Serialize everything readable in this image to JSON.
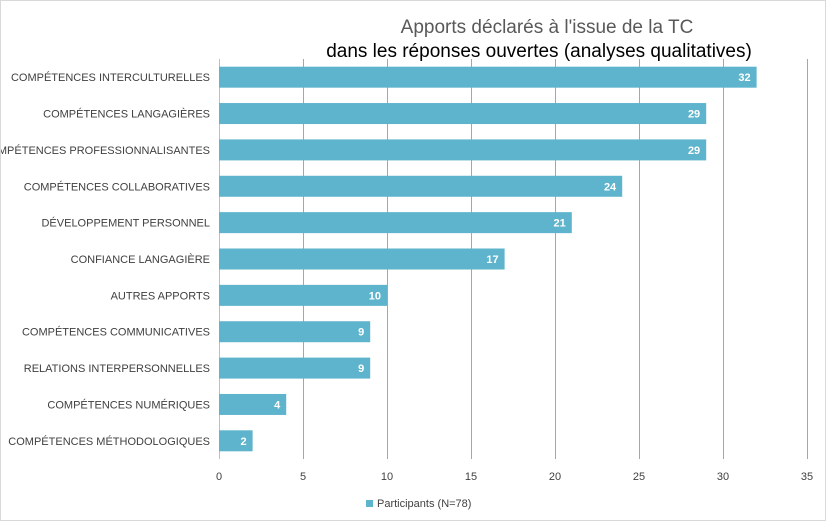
{
  "chart_data": {
    "type": "bar",
    "orientation": "horizontal",
    "title": "Apports déclarés à l'issue de la TC",
    "subtitle": "dans les réponses ouvertes (analyses qualitatives)",
    "categories": [
      "COMPÉTENCES INTERCULTURELLES",
      "COMPÉTENCES LANGAGIÈRES",
      "COMPÉTENCES PROFESSIONNALISANTES",
      "COMPÉTENCES COLLABORATIVES",
      "DÉVELOPPEMENT PERSONNEL",
      "CONFIANCE LANGAGIÈRE",
      "AUTRES APPORTS",
      "COMPÉTENCES COMMUNICATIVES",
      "RELATIONS INTERPERSONNELLES",
      "COMPÉTENCES NUMÉRIQUES",
      "COMPÉTENCES MÉTHODOLOGIQUES"
    ],
    "series": [
      {
        "name": "Participants (N=78)",
        "values": [
          32,
          29,
          29,
          24,
          21,
          17,
          10,
          9,
          9,
          4,
          2
        ]
      }
    ],
    "xlim": [
      0,
      35
    ],
    "xticks": [
      0,
      5,
      10,
      15,
      20,
      25,
      30,
      35
    ],
    "grid": true,
    "legend_position": "bottom",
    "data_labels": true,
    "bar_color": "#5eb4cc",
    "grid_color": "#a6a6a6"
  }
}
